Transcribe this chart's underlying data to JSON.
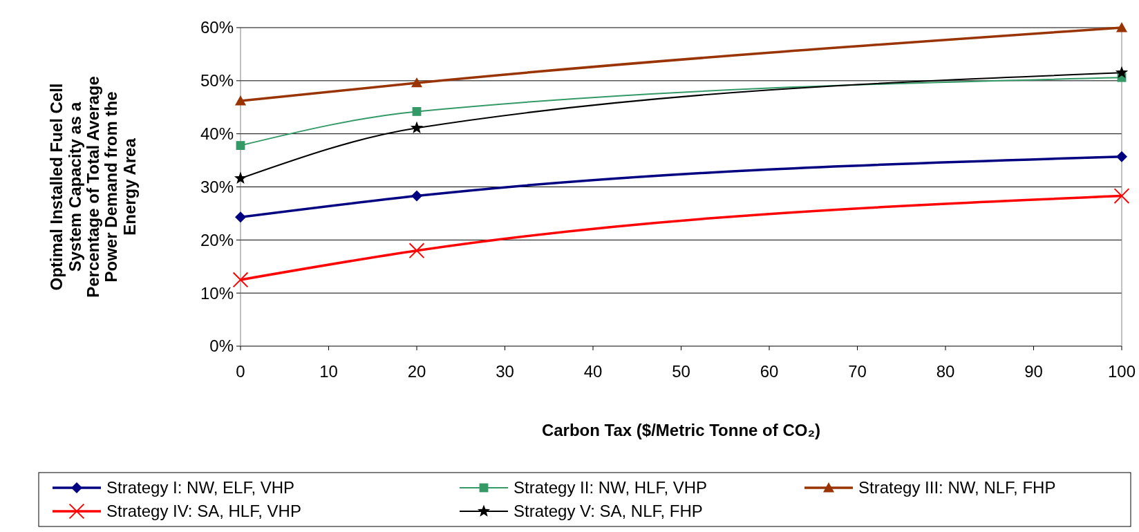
{
  "chart_data": {
    "type": "line",
    "xlabel": "Carbon Tax ($/Metric Tonne of CO₂)",
    "ylabel": "Optimal Installed Fuel Cell\nSystem Capacity as a\nPercentage of Total Average\nPower Demand from the\nEnergy Area",
    "x": [
      0,
      20,
      100
    ],
    "xlim": [
      0,
      100
    ],
    "xticks": [
      0,
      10,
      20,
      30,
      40,
      50,
      60,
      70,
      80,
      90,
      100
    ],
    "ylim": [
      0,
      60
    ],
    "yticks": [
      {
        "value": 0,
        "label": "0%"
      },
      {
        "value": 10,
        "label": "10%"
      },
      {
        "value": 20,
        "label": "20%"
      },
      {
        "value": 30,
        "label": "30%"
      },
      {
        "value": 40,
        "label": "40%"
      },
      {
        "value": 50,
        "label": "50%"
      },
      {
        "value": 60,
        "label": "60%"
      }
    ],
    "grid": "y",
    "legend": "bottom",
    "line_style": "solid",
    "series": [
      {
        "name": "Strategy I: NW, ELF, VHP",
        "color": "#000080",
        "marker": "diamond",
        "values": [
          24.3,
          28.3,
          35.7
        ]
      },
      {
        "name": "Strategy II: NW, HLF, VHP",
        "color": "#339966",
        "marker": "square",
        "values": [
          37.8,
          44.2,
          50.6
        ]
      },
      {
        "name": "Strategy III: NW, NLF, FHP",
        "color": "#993300",
        "marker": "triangle",
        "values": [
          46.2,
          49.6,
          60
        ]
      },
      {
        "name": "Strategy IV: SA, HLF, VHP",
        "color": "#ff0000",
        "marker": "cross",
        "values": [
          12.5,
          18,
          28.3
        ]
      },
      {
        "name": "Strategy V: SA, NLF, FHP",
        "color": "#000000",
        "marker": "star",
        "values": [
          31.6,
          41.1,
          51.5
        ]
      }
    ]
  }
}
